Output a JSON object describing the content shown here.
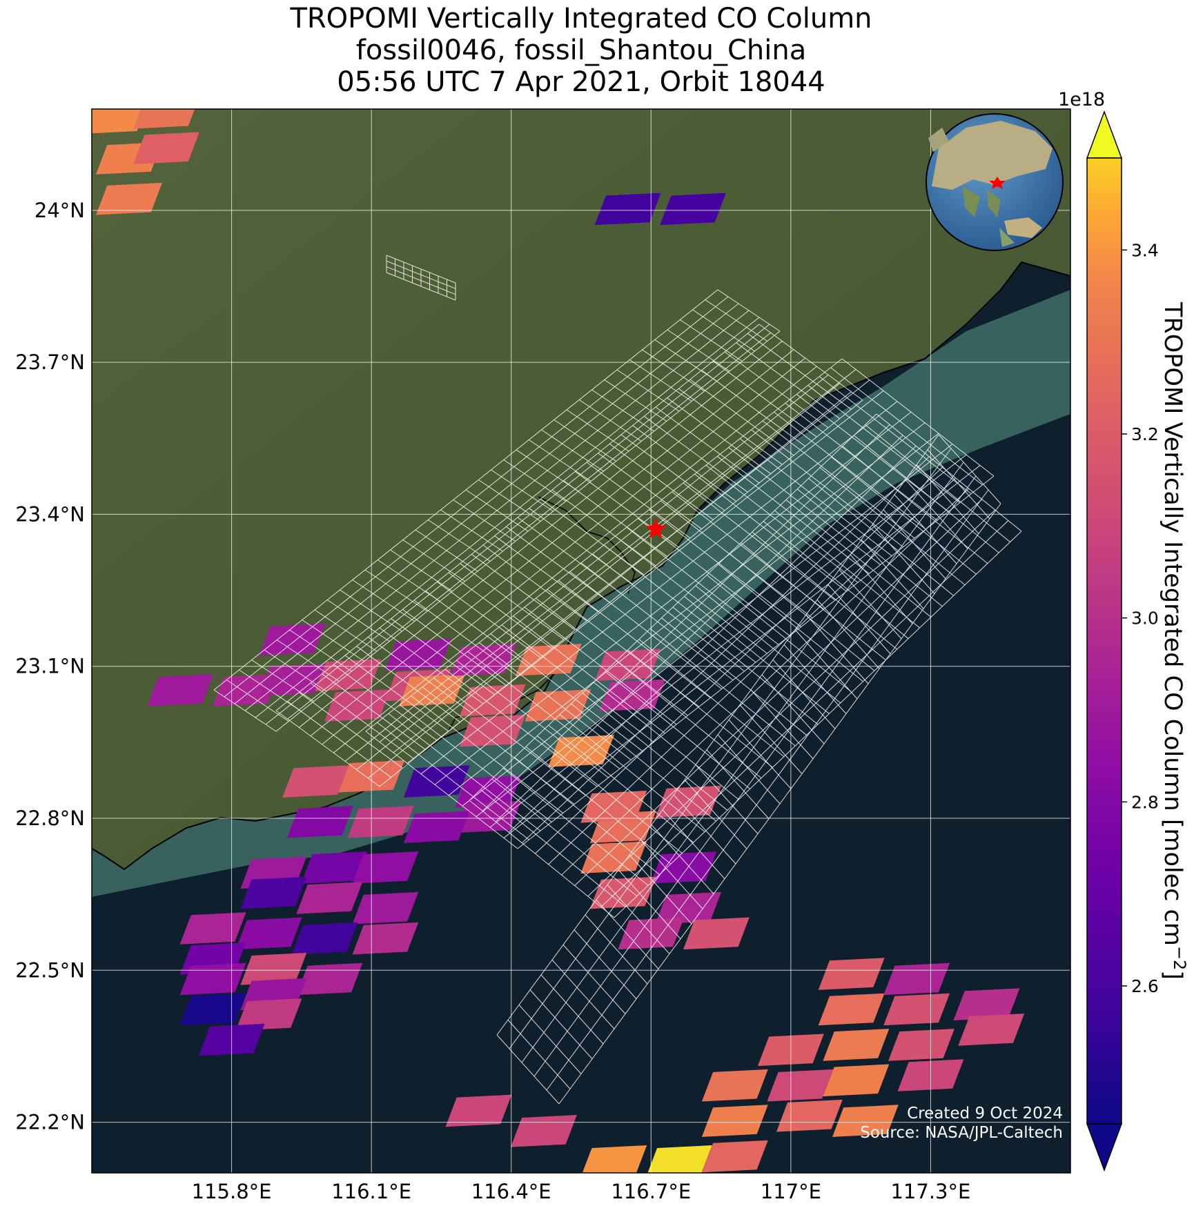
{
  "title_lines": [
    "TROPOMI Vertically Integrated CO Column",
    "fossil0046, fossil_Shantou_China",
    "05:56 UTC 7 Apr 2021, Orbit 18044"
  ],
  "credits": [
    "Created 9 Oct 2024",
    "Source: NASA/JPL-Caltech"
  ],
  "colors": {
    "land": "#4d5e37",
    "sea": "#0e1f2d",
    "coastal_water": "#3f6f66",
    "grid": "#ffffff",
    "site_marker": "#ff0000"
  },
  "icons": {
    "site": "red-star-icon",
    "globe": "globe-inset-icon",
    "colorbar_ends": "triangle-extend-icon"
  },
  "chart_data": {
    "type": "heatmap",
    "title": "TROPOMI Vertically Integrated CO Column",
    "map_extent": {
      "lon": [
        115.5,
        117.6
      ],
      "lat": [
        22.1,
        24.2
      ]
    },
    "x_ticks": [
      115.8,
      116.1,
      116.4,
      116.7,
      117.0,
      117.3
    ],
    "x_tick_labels": [
      "115.8°E",
      "116.1°E",
      "116.4°E",
      "116.7°E",
      "117°E",
      "117.3°E"
    ],
    "y_ticks": [
      24.0,
      23.7,
      23.4,
      23.1,
      22.8,
      22.5,
      22.2
    ],
    "y_tick_labels": [
      "24°N",
      "23.7°N",
      "23.4°N",
      "23.1°N",
      "22.8°N",
      "22.5°N",
      "22.2°N"
    ],
    "grid": true,
    "site": {
      "lon": 116.71,
      "lat": 23.37,
      "marker": "red star"
    },
    "colorbar": {
      "label": "TROPOMI Vertically Integrated CO Column [molec cm$^{-2}$]",
      "label_main": "TROPOMI Vertically Integrated CO Column [molec cm",
      "label_sup": "−2",
      "label_end": "]",
      "offset_text": "1e18",
      "range": [
        2.45,
        3.5
      ],
      "extend": "both",
      "ticks": [
        2.6,
        2.8,
        3.0,
        3.2,
        3.4
      ],
      "tick_labels": [
        "2.6",
        "2.8",
        "3.0",
        "3.2",
        "3.4"
      ],
      "colormap": "plasma"
    },
    "pixels": [
      {
        "lon": 115.55,
        "lat": 24.18,
        "value": 3.38
      },
      {
        "lon": 115.58,
        "lat": 24.1,
        "value": 3.35
      },
      {
        "lon": 115.58,
        "lat": 24.02,
        "value": 3.33
      },
      {
        "lon": 115.66,
        "lat": 24.12,
        "value": 3.22
      },
      {
        "lon": 115.66,
        "lat": 24.19,
        "value": 3.3
      },
      {
        "lon": 116.65,
        "lat": 24.0,
        "value": 2.58
      },
      {
        "lon": 116.79,
        "lat": 24.0,
        "value": 2.6
      },
      {
        "lon": 115.69,
        "lat": 23.05,
        "value": 2.9
      },
      {
        "lon": 115.83,
        "lat": 23.05,
        "value": 2.95
      },
      {
        "lon": 115.93,
        "lat": 23.07,
        "value": 2.93
      },
      {
        "lon": 115.93,
        "lat": 23.15,
        "value": 2.9
      },
      {
        "lon": 116.05,
        "lat": 23.08,
        "value": 3.12
      },
      {
        "lon": 116.07,
        "lat": 23.02,
        "value": 3.1
      },
      {
        "lon": 116.2,
        "lat": 23.06,
        "value": 3.12
      },
      {
        "lon": 116.23,
        "lat": 23.05,
        "value": 3.35
      },
      {
        "lon": 116.2,
        "lat": 23.12,
        "value": 2.88
      },
      {
        "lon": 116.34,
        "lat": 23.11,
        "value": 2.95
      },
      {
        "lon": 116.36,
        "lat": 23.03,
        "value": 3.18
      },
      {
        "lon": 116.36,
        "lat": 22.97,
        "value": 3.15
      },
      {
        "lon": 116.48,
        "lat": 23.11,
        "value": 3.3
      },
      {
        "lon": 116.5,
        "lat": 23.02,
        "value": 3.3
      },
      {
        "lon": 116.55,
        "lat": 22.93,
        "value": 3.38
      },
      {
        "lon": 116.65,
        "lat": 23.1,
        "value": 3.1
      },
      {
        "lon": 116.66,
        "lat": 23.04,
        "value": 2.98
      },
      {
        "lon": 115.98,
        "lat": 22.87,
        "value": 3.15
      },
      {
        "lon": 116.1,
        "lat": 22.88,
        "value": 3.28
      },
      {
        "lon": 116.24,
        "lat": 22.87,
        "value": 2.58
      },
      {
        "lon": 116.35,
        "lat": 22.85,
        "value": 2.85
      },
      {
        "lon": 116.35,
        "lat": 22.8,
        "value": 2.9
      },
      {
        "lon": 116.24,
        "lat": 22.78,
        "value": 2.83
      },
      {
        "lon": 116.12,
        "lat": 22.79,
        "value": 3.05
      },
      {
        "lon": 115.99,
        "lat": 22.79,
        "value": 2.8
      },
      {
        "lon": 115.89,
        "lat": 22.69,
        "value": 2.9
      },
      {
        "lon": 116.02,
        "lat": 22.7,
        "value": 2.75
      },
      {
        "lon": 116.13,
        "lat": 22.7,
        "value": 2.85
      },
      {
        "lon": 115.89,
        "lat": 22.65,
        "value": 2.62
      },
      {
        "lon": 116.01,
        "lat": 22.64,
        "value": 2.95
      },
      {
        "lon": 116.13,
        "lat": 22.62,
        "value": 2.9
      },
      {
        "lon": 115.76,
        "lat": 22.58,
        "value": 2.95
      },
      {
        "lon": 115.88,
        "lat": 22.57,
        "value": 2.83
      },
      {
        "lon": 116.0,
        "lat": 22.56,
        "value": 2.58
      },
      {
        "lon": 116.13,
        "lat": 22.56,
        "value": 2.98
      },
      {
        "lon": 115.76,
        "lat": 22.52,
        "value": 2.74
      },
      {
        "lon": 115.89,
        "lat": 22.5,
        "value": 3.12
      },
      {
        "lon": 116.01,
        "lat": 22.48,
        "value": 2.95
      },
      {
        "lon": 115.76,
        "lat": 22.48,
        "value": 2.85
      },
      {
        "lon": 115.89,
        "lat": 22.45,
        "value": 2.88
      },
      {
        "lon": 115.76,
        "lat": 22.42,
        "value": 2.48
      },
      {
        "lon": 115.88,
        "lat": 22.41,
        "value": 3.05
      },
      {
        "lon": 115.8,
        "lat": 22.36,
        "value": 2.65
      },
      {
        "lon": 116.64,
        "lat": 22.78,
        "value": 3.28
      },
      {
        "lon": 116.78,
        "lat": 22.83,
        "value": 3.15
      },
      {
        "lon": 116.62,
        "lat": 22.82,
        "value": 3.25
      },
      {
        "lon": 116.62,
        "lat": 22.72,
        "value": 3.3
      },
      {
        "lon": 116.77,
        "lat": 22.7,
        "value": 2.82
      },
      {
        "lon": 116.78,
        "lat": 22.62,
        "value": 2.95
      },
      {
        "lon": 116.64,
        "lat": 22.65,
        "value": 3.18
      },
      {
        "lon": 116.7,
        "lat": 22.57,
        "value": 3.0
      },
      {
        "lon": 116.84,
        "lat": 22.57,
        "value": 3.15
      },
      {
        "lon": 116.33,
        "lat": 22.22,
        "value": 3.1
      },
      {
        "lon": 116.47,
        "lat": 22.18,
        "value": 3.1
      },
      {
        "lon": 116.62,
        "lat": 22.12,
        "value": 3.4
      },
      {
        "lon": 116.76,
        "lat": 22.12,
        "value": 3.48
      },
      {
        "lon": 116.88,
        "lat": 22.13,
        "value": 3.25
      },
      {
        "lon": 116.88,
        "lat": 22.2,
        "value": 3.35
      },
      {
        "lon": 116.88,
        "lat": 22.27,
        "value": 3.3
      },
      {
        "lon": 117.0,
        "lat": 22.34,
        "value": 3.2
      },
      {
        "lon": 117.02,
        "lat": 22.27,
        "value": 3.12
      },
      {
        "lon": 117.04,
        "lat": 22.21,
        "value": 3.25
      },
      {
        "lon": 117.16,
        "lat": 22.2,
        "value": 3.35
      },
      {
        "lon": 117.14,
        "lat": 22.28,
        "value": 3.35
      },
      {
        "lon": 117.14,
        "lat": 22.35,
        "value": 3.33
      },
      {
        "lon": 117.13,
        "lat": 22.42,
        "value": 3.28
      },
      {
        "lon": 117.13,
        "lat": 22.49,
        "value": 3.2
      },
      {
        "lon": 117.27,
        "lat": 22.48,
        "value": 2.95
      },
      {
        "lon": 117.27,
        "lat": 22.42,
        "value": 3.15
      },
      {
        "lon": 117.28,
        "lat": 22.35,
        "value": 3.15
      },
      {
        "lon": 117.3,
        "lat": 22.29,
        "value": 3.1
      },
      {
        "lon": 117.42,
        "lat": 22.43,
        "value": 3.0
      },
      {
        "lon": 117.43,
        "lat": 22.38,
        "value": 3.12
      }
    ]
  }
}
